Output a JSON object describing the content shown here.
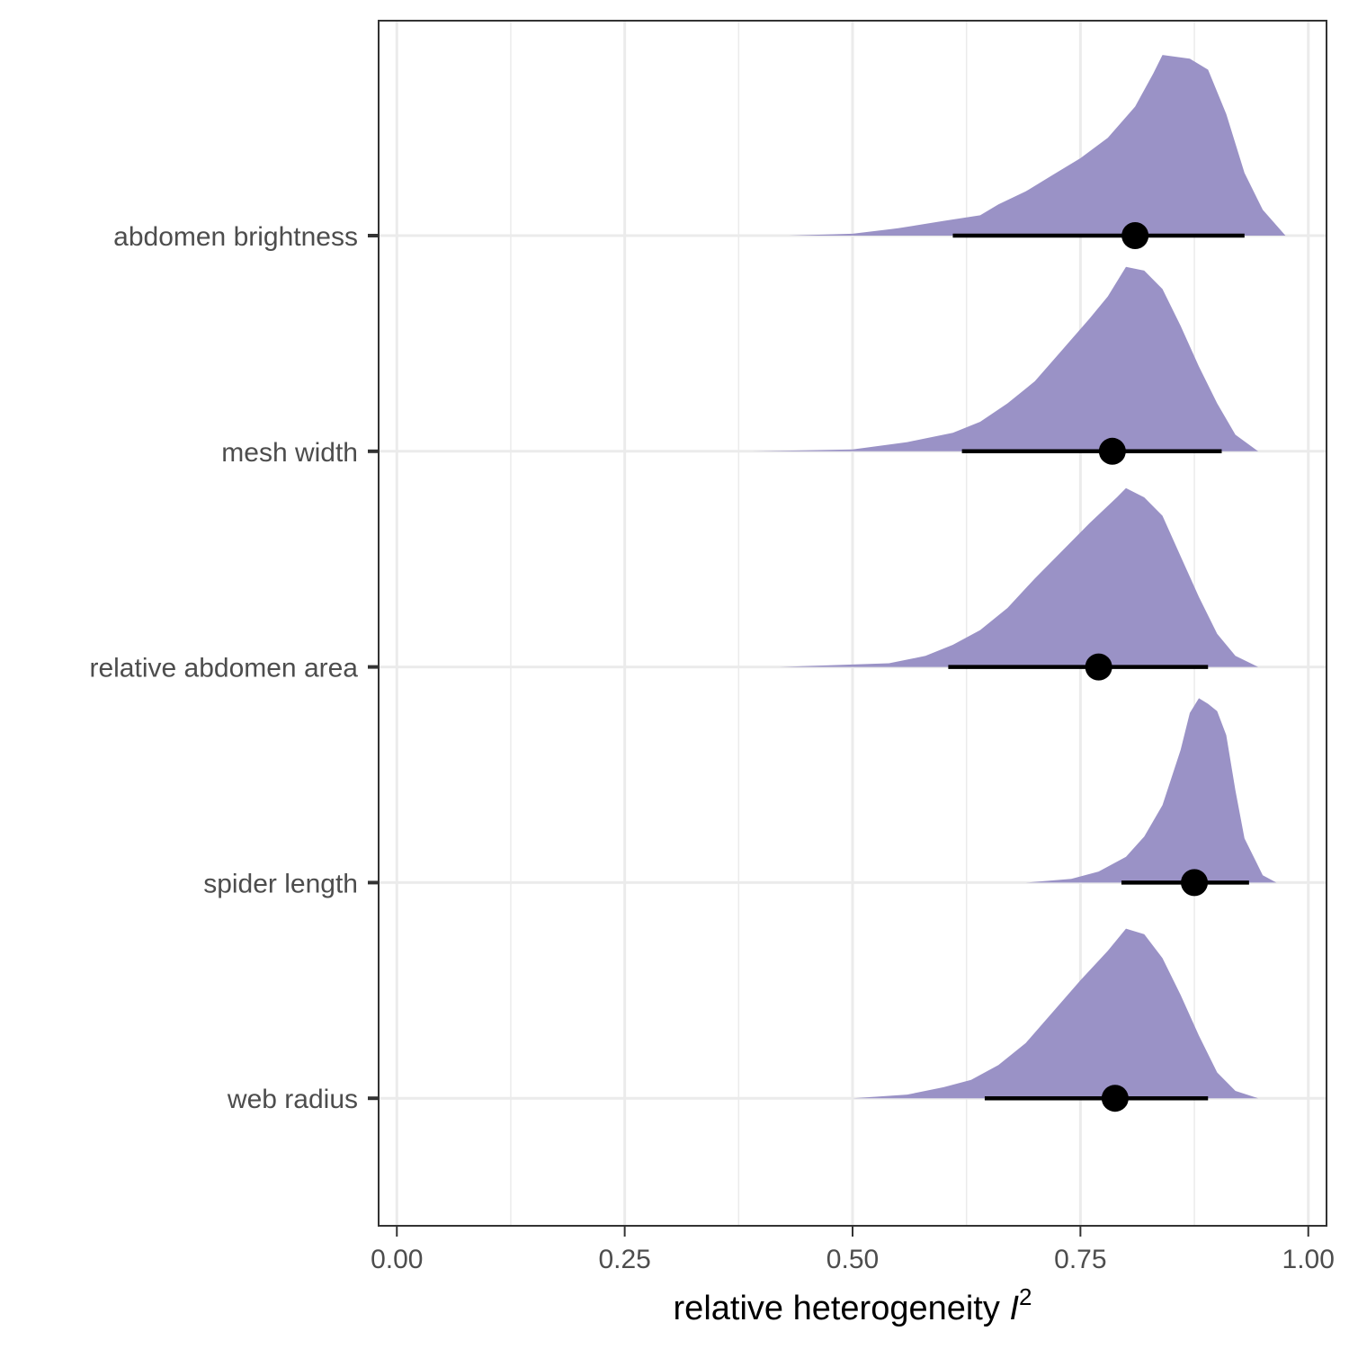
{
  "chart_data": {
    "type": "halfeye",
    "xlabel": "relative heterogeneity",
    "xlabel_symbol": "I",
    "xlabel_superscript": "2",
    "ylabel": "",
    "xlim": [
      -0.02,
      1.02
    ],
    "xticks": [
      0.0,
      0.25,
      0.5,
      0.75,
      1.0
    ],
    "xtick_labels": [
      "0.00",
      "0.25",
      "0.50",
      "0.75",
      "1.00"
    ],
    "grid": true,
    "fill_color": "#9a92c6",
    "point_color": "#000000",
    "categories": [
      "abdomen brightness",
      "mesh width",
      "relative abdomen area",
      "spider length",
      "web radius"
    ],
    "series": [
      {
        "category": "abdomen brightness",
        "point": 0.81,
        "interval": [
          0.61,
          0.93
        ],
        "density": [
          [
            0.43,
            0
          ],
          [
            0.5,
            0.01
          ],
          [
            0.55,
            0.04
          ],
          [
            0.6,
            0.08
          ],
          [
            0.64,
            0.11
          ],
          [
            0.66,
            0.17
          ],
          [
            0.69,
            0.24
          ],
          [
            0.72,
            0.33
          ],
          [
            0.75,
            0.42
          ],
          [
            0.78,
            0.53
          ],
          [
            0.81,
            0.7
          ],
          [
            0.83,
            0.88
          ],
          [
            0.84,
            0.98
          ],
          [
            0.87,
            0.96
          ],
          [
            0.89,
            0.9
          ],
          [
            0.91,
            0.66
          ],
          [
            0.93,
            0.34
          ],
          [
            0.95,
            0.14
          ],
          [
            0.975,
            0
          ]
        ]
      },
      {
        "category": "mesh width",
        "point": 0.785,
        "interval": [
          0.62,
          0.905
        ],
        "density": [
          [
            0.39,
            0
          ],
          [
            0.5,
            0.01
          ],
          [
            0.56,
            0.05
          ],
          [
            0.61,
            0.1
          ],
          [
            0.64,
            0.16
          ],
          [
            0.67,
            0.26
          ],
          [
            0.7,
            0.38
          ],
          [
            0.73,
            0.55
          ],
          [
            0.76,
            0.72
          ],
          [
            0.78,
            0.84
          ],
          [
            0.8,
            1.0
          ],
          [
            0.82,
            0.98
          ],
          [
            0.84,
            0.88
          ],
          [
            0.86,
            0.68
          ],
          [
            0.88,
            0.46
          ],
          [
            0.9,
            0.26
          ],
          [
            0.92,
            0.09
          ],
          [
            0.945,
            0
          ]
        ]
      },
      {
        "category": "relative abdomen area",
        "point": 0.77,
        "interval": [
          0.605,
          0.89
        ],
        "density": [
          [
            0.42,
            0
          ],
          [
            0.54,
            0.02
          ],
          [
            0.58,
            0.06
          ],
          [
            0.61,
            0.12
          ],
          [
            0.64,
            0.2
          ],
          [
            0.67,
            0.32
          ],
          [
            0.7,
            0.48
          ],
          [
            0.73,
            0.63
          ],
          [
            0.76,
            0.78
          ],
          [
            0.79,
            0.92
          ],
          [
            0.8,
            0.97
          ],
          [
            0.82,
            0.92
          ],
          [
            0.84,
            0.82
          ],
          [
            0.86,
            0.6
          ],
          [
            0.88,
            0.38
          ],
          [
            0.9,
            0.18
          ],
          [
            0.92,
            0.06
          ],
          [
            0.945,
            0
          ]
        ]
      },
      {
        "category": "spider length",
        "point": 0.875,
        "interval": [
          0.795,
          0.935
        ],
        "density": [
          [
            0.69,
            0
          ],
          [
            0.74,
            0.02
          ],
          [
            0.77,
            0.06
          ],
          [
            0.8,
            0.14
          ],
          [
            0.82,
            0.25
          ],
          [
            0.84,
            0.42
          ],
          [
            0.86,
            0.72
          ],
          [
            0.87,
            0.92
          ],
          [
            0.88,
            1.0
          ],
          [
            0.89,
            0.97
          ],
          [
            0.9,
            0.93
          ],
          [
            0.91,
            0.8
          ],
          [
            0.92,
            0.5
          ],
          [
            0.93,
            0.24
          ],
          [
            0.95,
            0.04
          ],
          [
            0.965,
            0
          ]
        ]
      },
      {
        "category": "web radius",
        "point": 0.788,
        "interval": [
          0.645,
          0.89
        ],
        "density": [
          [
            0.5,
            0
          ],
          [
            0.56,
            0.02
          ],
          [
            0.6,
            0.06
          ],
          [
            0.63,
            0.1
          ],
          [
            0.66,
            0.18
          ],
          [
            0.69,
            0.3
          ],
          [
            0.72,
            0.47
          ],
          [
            0.75,
            0.64
          ],
          [
            0.78,
            0.8
          ],
          [
            0.8,
            0.92
          ],
          [
            0.82,
            0.89
          ],
          [
            0.84,
            0.76
          ],
          [
            0.86,
            0.56
          ],
          [
            0.88,
            0.34
          ],
          [
            0.9,
            0.14
          ],
          [
            0.92,
            0.04
          ],
          [
            0.945,
            0
          ]
        ]
      }
    ]
  }
}
